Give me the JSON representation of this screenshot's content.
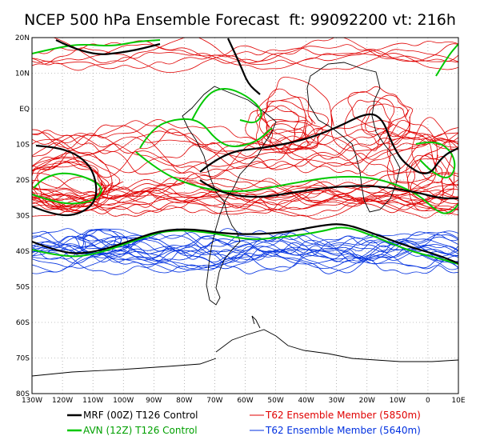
{
  "title": "NCEP 500 hPa Ensemble Forecast  ft: 99092200 vt: 216h",
  "axes": {
    "lat_labels": [
      "20N",
      "10N",
      "EQ",
      "10S",
      "20S",
      "30S",
      "40S",
      "50S",
      "60S",
      "70S",
      "80S"
    ],
    "lon_labels": [
      "130W",
      "120W",
      "110W",
      "100W",
      "90W",
      "80W",
      "70W",
      "60W",
      "50W",
      "40W",
      "30W",
      "20W",
      "10W",
      "0",
      "10E"
    ]
  },
  "legend": [
    {
      "label": "MRF (00Z) T126 Control",
      "color": "#000000"
    },
    {
      "label": "AVN (12Z) T126 Control",
      "color": "#00c800"
    },
    {
      "label": "T62 Ensemble Member (5850m)",
      "color": "#e00000"
    },
    {
      "label": "T62 Ensemble Member (5640m)",
      "color": "#0030e0"
    }
  ],
  "colors": {
    "mrf": "#000000",
    "avn": "#00c800",
    "ens_5850": "#e00000",
    "ens_5640": "#0030e0",
    "coast": "#000000",
    "grid": "#888888"
  }
}
